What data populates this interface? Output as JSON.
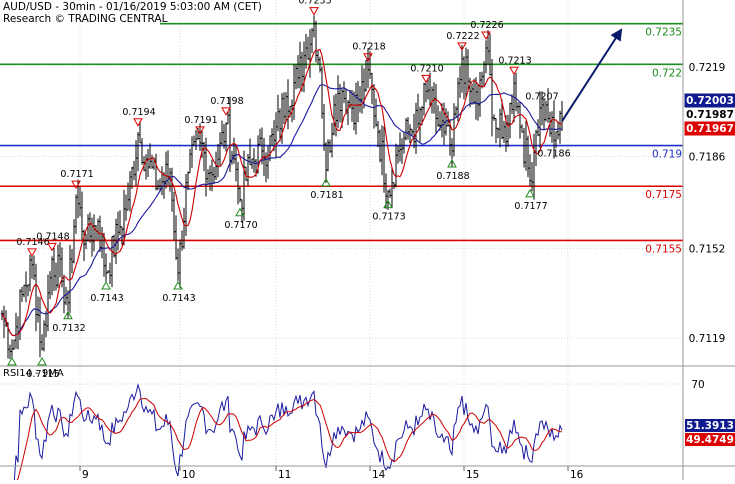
{
  "header": {
    "title": "AUD/USD - 30min - 01/16/2019 5:03:00 AM (CET)",
    "credit": "Research © TRADING CENTRAL"
  },
  "rsi_panel": {
    "title": "RSI14 - 9MA"
  },
  "colors": {
    "price": "#000000",
    "ma_fast": "#cc0000",
    "ma_slow": "#1a1aa0",
    "resistance": "#1e8c1e",
    "pivot": "#1f2fcc",
    "support": "#dd0000",
    "arrow": "#0a1a6b",
    "current_badge": "#0e1a8e",
    "ma_badge": "#dd0000",
    "rsi_badge": "#0e1a8e",
    "rsi_ma_badge": "#dd0000"
  },
  "chart_data": [
    {
      "type": "line",
      "title": "AUD/USD - 30min - 01/16/2019 5:03:00 AM (CET)",
      "x_tick_labels": [
        "9",
        "10",
        "11",
        "14",
        "15",
        "16"
      ],
      "y_tick_labels": [
        "0.7219",
        "0.7186",
        "0.7152",
        "0.7119"
      ],
      "ylim": [
        0.7104,
        0.724
      ],
      "horizontal_levels": [
        {
          "value": 0.7235,
          "label": "0.7235",
          "kind": "resistance"
        },
        {
          "value": 0.722,
          "label": "0.722",
          "kind": "resistance"
        },
        {
          "value": 0.719,
          "label": "0.719",
          "kind": "pivot"
        },
        {
          "value": 0.7175,
          "label": "0.7175",
          "kind": "support"
        },
        {
          "value": 0.7155,
          "label": "0.7155",
          "kind": "support"
        }
      ],
      "badges": [
        {
          "label": "0.72003",
          "value": 0.72003,
          "kind": "current"
        },
        {
          "label": "0.71987",
          "value": 0.71987,
          "kind": "plain"
        },
        {
          "label": "0.71967",
          "value": 0.71967,
          "kind": "ma"
        }
      ],
      "swing_markers": [
        {
          "bar": 5,
          "price": 0.7115,
          "label": "",
          "type": "low"
        },
        {
          "bar": 20,
          "price": 0.7115,
          "label": "0.7115",
          "type": "low"
        },
        {
          "bar": 15,
          "price": 0.7146,
          "label": "0.7146",
          "type": "high"
        },
        {
          "bar": 25,
          "price": 0.7148,
          "label": "0.7148",
          "type": "high"
        },
        {
          "bar": 33,
          "price": 0.7132,
          "label": "0.7132",
          "type": "low"
        },
        {
          "bar": 37,
          "price": 0.7171,
          "label": "0.7171",
          "type": "high"
        },
        {
          "bar": 52,
          "price": 0.7143,
          "label": "0.7143",
          "type": "low"
        },
        {
          "bar": 68,
          "price": 0.7194,
          "label": "0.7194",
          "type": "high"
        },
        {
          "bar": 88,
          "price": 0.7143,
          "label": "0.7143",
          "type": "low"
        },
        {
          "bar": 99,
          "price": 0.7191,
          "label": "0.7191",
          "type": "high"
        },
        {
          "bar": 112,
          "price": 0.7198,
          "label": "0.7198",
          "type": "high"
        },
        {
          "bar": 119,
          "price": 0.717,
          "label": "0.7170",
          "type": "low"
        },
        {
          "bar": 156,
          "price": 0.7235,
          "label": "0.7235",
          "type": "high"
        },
        {
          "bar": 162,
          "price": 0.7181,
          "label": "0.7181",
          "type": "low"
        },
        {
          "bar": 183,
          "price": 0.7218,
          "label": "0.7218",
          "type": "high"
        },
        {
          "bar": 193,
          "price": 0.7173,
          "label": "0.7173",
          "type": "low"
        },
        {
          "bar": 212,
          "price": 0.721,
          "label": "0.7210",
          "type": "high"
        },
        {
          "bar": 225,
          "price": 0.7188,
          "label": "0.7188",
          "type": "low"
        },
        {
          "bar": 230,
          "price": 0.7222,
          "label": "0.7222",
          "type": "high"
        },
        {
          "bar": 242,
          "price": 0.7226,
          "label": "0.7226",
          "type": "high"
        },
        {
          "bar": 256,
          "price": 0.7213,
          "label": "0.7213",
          "type": "high"
        },
        {
          "bar": 264,
          "price": 0.7177,
          "label": "0.7177",
          "type": "low"
        },
        {
          "bar": 270,
          "price": 0.7207,
          "label": "0.7207",
          "type": "plain"
        },
        {
          "bar": 276,
          "price": 0.7186,
          "label": "0.7186",
          "type": "plain"
        }
      ],
      "projection": {
        "from_bar": 280,
        "from_price": 0.7199,
        "to_bar": 305,
        "to_price": 0.7235
      },
      "waypoints": [
        [
          0,
          0.7128
        ],
        [
          5,
          0.7115
        ],
        [
          10,
          0.7135
        ],
        [
          15,
          0.7146
        ],
        [
          20,
          0.7115
        ],
        [
          25,
          0.7148
        ],
        [
          30,
          0.714
        ],
        [
          33,
          0.7132
        ],
        [
          37,
          0.7171
        ],
        [
          42,
          0.7155
        ],
        [
          48,
          0.7162
        ],
        [
          52,
          0.7143
        ],
        [
          58,
          0.7158
        ],
        [
          63,
          0.717
        ],
        [
          68,
          0.7194
        ],
        [
          72,
          0.7185
        ],
        [
          78,
          0.7175
        ],
        [
          84,
          0.718
        ],
        [
          88,
          0.7143
        ],
        [
          93,
          0.718
        ],
        [
          99,
          0.7191
        ],
        [
          104,
          0.718
        ],
        [
          108,
          0.7185
        ],
        [
          112,
          0.7198
        ],
        [
          116,
          0.7185
        ],
        [
          119,
          0.717
        ],
        [
          124,
          0.7183
        ],
        [
          130,
          0.7188
        ],
        [
          136,
          0.7192
        ],
        [
          142,
          0.7208
        ],
        [
          148,
          0.7215
        ],
        [
          152,
          0.7226
        ],
        [
          156,
          0.7235
        ],
        [
          159,
          0.7218
        ],
        [
          162,
          0.7181
        ],
        [
          166,
          0.7205
        ],
        [
          170,
          0.721
        ],
        [
          174,
          0.7205
        ],
        [
          178,
          0.7205
        ],
        [
          183,
          0.7218
        ],
        [
          188,
          0.7195
        ],
        [
          193,
          0.7173
        ],
        [
          198,
          0.7188
        ],
        [
          203,
          0.7195
        ],
        [
          208,
          0.7198
        ],
        [
          212,
          0.721
        ],
        [
          217,
          0.72
        ],
        [
          221,
          0.7195
        ],
        [
          225,
          0.7188
        ],
        [
          230,
          0.7222
        ],
        [
          234,
          0.721
        ],
        [
          238,
          0.7205
        ],
        [
          242,
          0.7226
        ],
        [
          246,
          0.72
        ],
        [
          250,
          0.7193
        ],
        [
          253,
          0.7198
        ],
        [
          256,
          0.7213
        ],
        [
          260,
          0.7195
        ],
        [
          264,
          0.7177
        ],
        [
          267,
          0.7195
        ],
        [
          270,
          0.7205
        ],
        [
          273,
          0.72
        ],
        [
          276,
          0.7192
        ],
        [
          280,
          0.7199
        ]
      ]
    },
    {
      "type": "line",
      "title": "RSI14 - 9MA",
      "y_tick_labels": [
        "70"
      ],
      "ylim": [
        25,
        80
      ],
      "levels": [
        70,
        30
      ],
      "badges": [
        {
          "label": "51.3913",
          "value": 51.3913,
          "kind": "rsi"
        },
        {
          "label": "49.4749",
          "value": 49.4749,
          "kind": "ma"
        }
      ]
    }
  ]
}
